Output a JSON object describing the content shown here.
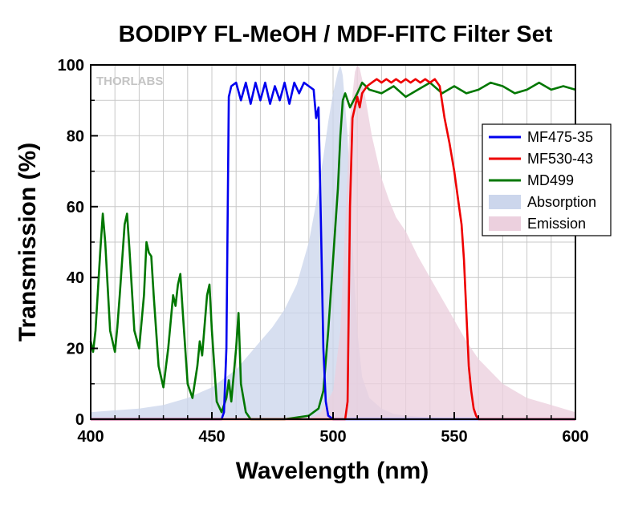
{
  "chart_data": {
    "type": "line",
    "title": "BODIPY FL-MeOH / MDF-FITC Filter Set",
    "xlabel": "Wavelength (nm)",
    "ylabel": "Transmission (%)",
    "xlim": [
      400,
      600
    ],
    "ylim": [
      0,
      100
    ],
    "xticks": [
      400,
      450,
      500,
      550,
      600
    ],
    "yticks": [
      0,
      20,
      40,
      60,
      80,
      100
    ],
    "grid": true,
    "legend_position": "right",
    "watermark": "THORLABS",
    "series": [
      {
        "name": "MF475-35",
        "kind": "line",
        "color": "#0000ee",
        "x": [
          400,
          454,
          455,
          456,
          457,
          458,
          460,
          462,
          464,
          466,
          468,
          470,
          472,
          474,
          476,
          478,
          480,
          482,
          484,
          486,
          488,
          490,
          492,
          493,
          494,
          495,
          496,
          497,
          498,
          500,
          600
        ],
        "y": [
          0,
          0,
          2,
          20,
          91,
          94,
          95,
          90,
          95,
          89,
          95,
          90,
          95,
          89,
          94,
          90,
          95,
          89,
          95,
          92,
          95,
          94,
          93,
          85,
          88,
          55,
          20,
          5,
          1,
          0,
          0
        ]
      },
      {
        "name": "MF530-43",
        "kind": "line",
        "color": "#ee0000",
        "x": [
          400,
          505,
          506,
          507,
          508,
          509,
          510,
          511,
          512,
          514,
          516,
          518,
          520,
          522,
          524,
          526,
          528,
          530,
          532,
          534,
          536,
          538,
          540,
          542,
          544,
          546,
          548,
          550,
          552,
          553,
          554,
          555,
          556,
          557,
          558,
          559,
          560,
          600
        ],
        "y": [
          0,
          0,
          5,
          60,
          85,
          88,
          91,
          88,
          92,
          94,
          95,
          96,
          95,
          96,
          95,
          96,
          95,
          96,
          95,
          96,
          95,
          96,
          95,
          96,
          94,
          85,
          78,
          70,
          60,
          55,
          45,
          30,
          15,
          8,
          3,
          1,
          0,
          0
        ]
      },
      {
        "name": "MD499",
        "kind": "line",
        "color": "#007700",
        "x": [
          400,
          401,
          402,
          404,
          405,
          406,
          408,
          410,
          411,
          412,
          414,
          415,
          416,
          418,
          420,
          422,
          423,
          424,
          425,
          426,
          428,
          430,
          432,
          434,
          435,
          436,
          437,
          438,
          440,
          442,
          444,
          445,
          446,
          448,
          449,
          450,
          452,
          454,
          456,
          457,
          458,
          460,
          461,
          462,
          464,
          466,
          470,
          480,
          490,
          494,
          496,
          498,
          500,
          501,
          502,
          503,
          504,
          505,
          506,
          507,
          510,
          512,
          515,
          520,
          525,
          530,
          535,
          540,
          545,
          550,
          555,
          560,
          565,
          570,
          575,
          580,
          585,
          590,
          595,
          600
        ],
        "y": [
          22,
          19,
          25,
          48,
          58,
          50,
          25,
          19,
          26,
          35,
          55,
          58,
          48,
          25,
          20,
          35,
          50,
          47,
          46,
          35,
          15,
          9,
          20,
          35,
          32,
          38,
          41,
          30,
          10,
          6,
          15,
          22,
          18,
          35,
          38,
          25,
          5,
          2,
          6,
          11,
          5,
          20,
          30,
          10,
          2,
          0,
          0,
          0,
          1,
          3,
          8,
          25,
          45,
          55,
          65,
          80,
          90,
          92,
          90,
          88,
          92,
          95,
          93,
          92,
          94,
          91,
          93,
          95,
          92,
          94,
          92,
          93,
          95,
          94,
          92,
          93,
          95,
          93,
          94,
          93
        ]
      },
      {
        "name": "Absorption",
        "kind": "area",
        "color": "#ccd6ec",
        "x": [
          400,
          410,
          420,
          430,
          440,
          450,
          460,
          470,
          475,
          480,
          485,
          490,
          493,
          496,
          498,
          500,
          502,
          503,
          504,
          506,
          508,
          510,
          512,
          515,
          520,
          525,
          530,
          540,
          550,
          600
        ],
        "y": [
          2,
          2.5,
          3,
          4,
          6,
          9,
          14,
          22,
          26,
          31,
          38,
          50,
          61,
          74,
          84,
          92,
          98,
          100,
          97,
          80,
          50,
          25,
          12,
          6,
          3,
          1.5,
          1,
          0.5,
          0.2,
          0
        ]
      },
      {
        "name": "Emission",
        "kind": "area",
        "color": "#ecd0de",
        "x": [
          490,
          495,
          500,
          503,
          505,
          507,
          509,
          510,
          511,
          512,
          514,
          516,
          518,
          520,
          523,
          526,
          530,
          535,
          540,
          545,
          550,
          555,
          560,
          570,
          580,
          590,
          600
        ],
        "y": [
          0,
          2,
          8,
          25,
          55,
          85,
          98,
          100,
          99,
          96,
          88,
          80,
          74,
          68,
          62,
          57,
          53,
          46,
          40,
          34,
          28,
          22,
          17,
          10,
          6,
          4,
          2
        ]
      }
    ]
  }
}
